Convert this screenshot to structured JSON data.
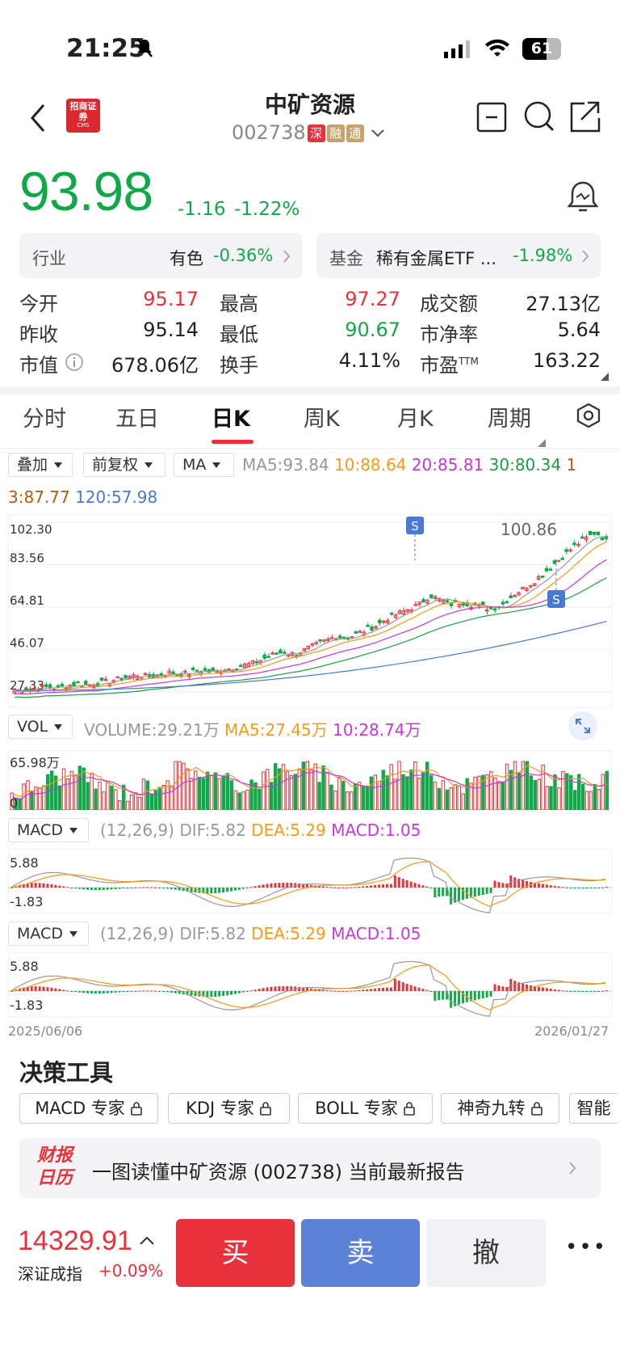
{
  "status": {
    "time": "21:25",
    "battery": "61"
  },
  "header": {
    "title": "中矿资源",
    "code": "002738",
    "tags": [
      "深",
      "融",
      "通"
    ],
    "logo_text": "招商证券",
    "logo_sub": "CMS"
  },
  "quote": {
    "price": "93.98",
    "change": "-1.16",
    "change_pct": "-1.22%"
  },
  "industry": {
    "label": "行业",
    "name": "有色",
    "pct": "-0.36%"
  },
  "fund": {
    "label": "基金",
    "name": "稀有金属ETF ...",
    "pct": "-1.98%"
  },
  "stats": [
    {
      "label": "今开",
      "value": "95.17",
      "color": "red"
    },
    {
      "label": "最高",
      "value": "97.27",
      "color": "red"
    },
    {
      "label": "成交额",
      "value": "27.13亿",
      "color": "black"
    },
    {
      "label": "昨收",
      "value": "95.14",
      "color": "black"
    },
    {
      "label": "最低",
      "value": "90.67",
      "color": "green"
    },
    {
      "label": "市净率",
      "value": "5.64",
      "color": "black"
    },
    {
      "label": "市值",
      "value": "678.06亿",
      "color": "black"
    },
    {
      "label": "换手",
      "value": "4.11%",
      "color": "black"
    },
    {
      "label": "市盈",
      "value": "163.22",
      "color": "black",
      "sup": "TTM"
    }
  ],
  "tabs": [
    "分时",
    "五日",
    "日K",
    "周K",
    "月K",
    "周期"
  ],
  "active_tab": "日K",
  "toolbar": {
    "overlay": "叠加",
    "adjust": "前复权",
    "ma": "MA",
    "vol": "VOL",
    "macd": "MACD"
  },
  "ma_legend": {
    "ma5": "MA5:93.84",
    "ma10": "10:88.64",
    "ma20": "20:85.81",
    "ma30": "30:80.34",
    "ma60": "1",
    "ma60b": "3:87.77",
    "ma120": "120:57.98"
  },
  "volume_legend": {
    "vol": "VOLUME:29.21万",
    "ma5": "MA5:27.45万",
    "ma10": "10:28.74万",
    "max": "65.98万",
    "zero": "0"
  },
  "macd_legend": {
    "params": "(12,26,9)",
    "dif": "DIF:5.82",
    "dea": "DEA:5.29",
    "macd": "MACD:1.05",
    "max": "5.88",
    "min": "-1.83"
  },
  "chart_data": {
    "type": "candlestick",
    "y_ticks": [
      "102.30",
      "83.56",
      "64.81",
      "46.07",
      "27.33"
    ],
    "ylim": [
      27.33,
      102.3
    ],
    "max_label": "100.86",
    "signal_labels": [
      "S",
      "S"
    ],
    "close_approx": [
      28,
      28.5,
      29,
      29.5,
      29,
      30,
      31,
      30.5,
      31,
      32,
      33,
      34,
      35,
      34,
      35,
      36,
      35,
      36,
      37,
      36,
      37,
      38,
      39,
      40,
      42,
      44,
      45,
      44,
      46,
      48,
      50,
      52,
      51,
      53,
      55,
      57,
      60,
      62,
      64,
      66,
      70,
      68,
      66,
      67,
      66,
      65,
      64,
      66,
      70,
      73,
      76,
      80,
      84,
      88,
      92,
      95,
      98,
      94
    ],
    "date_start": "2025/06/06",
    "date_end": "2026/01/27"
  },
  "tools": {
    "title": "决策工具",
    "chips": [
      "MACD 专家",
      "KDJ 专家",
      "BOLL 专家",
      "神奇九转",
      "智能"
    ]
  },
  "report": {
    "logo1": "财报",
    "logo2": "日历",
    "text": "一图读懂中矿资源 (002738) 当前最新报告"
  },
  "index": {
    "value": "14329.91",
    "name": "深证成指",
    "pct": "+0.09%"
  },
  "actions": {
    "buy": "买",
    "sell": "卖",
    "cancel": "撤",
    "more": "•••"
  }
}
